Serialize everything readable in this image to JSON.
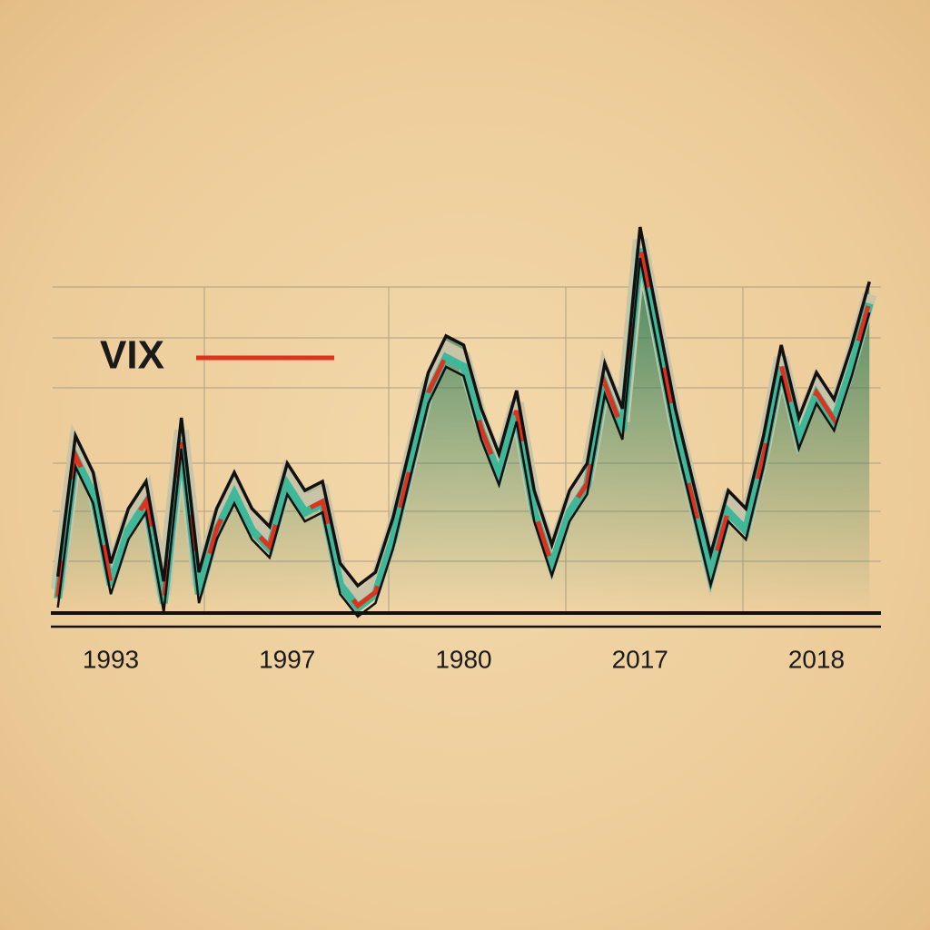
{
  "chart_data": {
    "type": "line",
    "categories": [
      null,
      null,
      null,
      "1993",
      null,
      null,
      null,
      null,
      null,
      null,
      null,
      null,
      null,
      "1997",
      null,
      null,
      null,
      null,
      null,
      null,
      null,
      null,
      null,
      "1980",
      null,
      null,
      null,
      null,
      null,
      null,
      null,
      null,
      null,
      "2017",
      null,
      null,
      null,
      null,
      null,
      null,
      null,
      null,
      null,
      "2018",
      null,
      null,
      null
    ],
    "series": [
      {
        "name": "VIX",
        "color": "#e0301e",
        "values": [
          8.8,
          44.6,
          35.3,
          12.2,
          26.1,
          33.0,
          7.6,
          49.2,
          9.9,
          26.1,
          35.3,
          26.1,
          21.5,
          37.6,
          30.7,
          33.0,
          12.2,
          6.5,
          9.9,
          23.8,
          42.3,
          60.7,
          70.0,
          67.7,
          51.5,
          40.0,
          56.1,
          30.7,
          16.9,
          30.7,
          37.6,
          63.0,
          51.5,
          97.7,
          74.6,
          51.5,
          33.0,
          14.5,
          30.7,
          26.1,
          44.6,
          67.7,
          49.2,
          60.7,
          53.8,
          67.7,
          83.8
        ]
      }
    ],
    "ylim": [
      0,
      100
    ],
    "area_color": "#2e7d57",
    "legend": "upper left"
  }
}
